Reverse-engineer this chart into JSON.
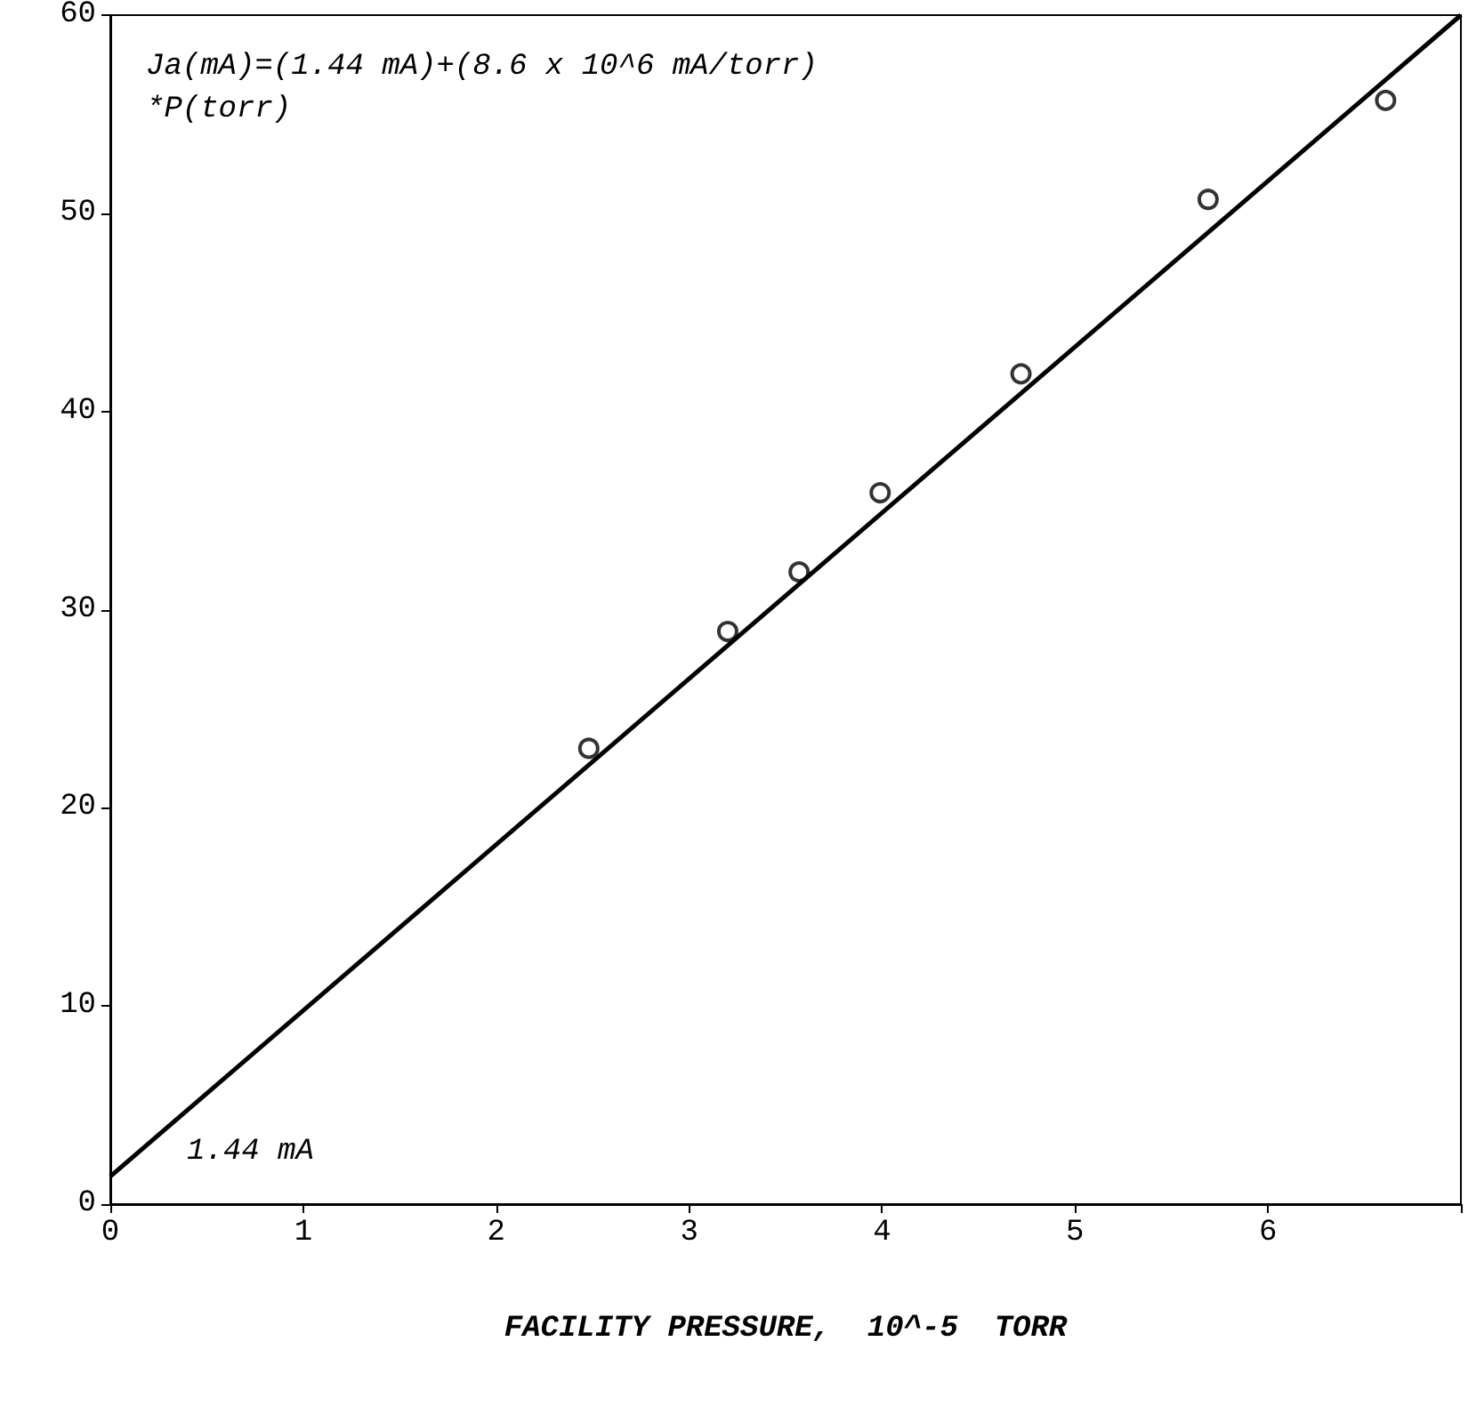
{
  "chart_data": {
    "type": "scatter",
    "xlabel": "FACILITY PRESSURE,  10^-5  TORR",
    "annotations": [
      "Ja(mA)=(1.44 mA)+(8.6 x 10^6 mA/torr)\n*P(torr)",
      "1.44 mA"
    ],
    "xlim": [
      0,
      7
    ],
    "xticks": [
      0,
      1,
      2,
      3,
      4,
      5,
      6,
      {
        "value": 7,
        "label": null
      }
    ],
    "ylim": [
      0,
      60
    ],
    "yticks": [
      0,
      10,
      20,
      30,
      40,
      50,
      60
    ],
    "grid": false,
    "marker": "circle",
    "series": [
      {
        "color": "#000000",
        "x": [
          2.48,
          3.2,
          3.57,
          3.99,
          4.72,
          5.69,
          6.61
        ],
        "values": [
          23,
          28.9,
          31.9,
          35.9,
          41.9,
          50.7,
          55.7
        ]
      },
      {
        "type": "line",
        "color": "#000000",
        "marker": "none",
        "line_style": "solid",
        "x": [
          0,
          7
        ],
        "values": [
          1.4,
          60
        ]
      }
    ]
  }
}
